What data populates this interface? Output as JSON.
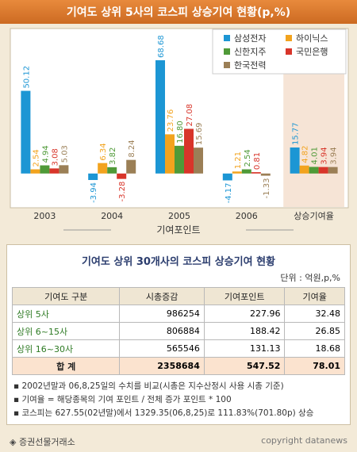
{
  "chart_data": {
    "type": "bar",
    "title": "기여도 상위 5사의 코스피 상승기여 현황(p,%)",
    "x_label": "기여포인트",
    "categories": [
      "2003",
      "2004",
      "2005",
      "2006",
      "상승기여율"
    ],
    "series": [
      {
        "name": "삼성전자",
        "color": "#1c96d4",
        "values": [
          50.12,
          -3.94,
          68.68,
          -4.17,
          15.77
        ]
      },
      {
        "name": "하이닉스",
        "color": "#f2a31e",
        "values": [
          2.54,
          6.34,
          23.76,
          1.21,
          4.82
        ]
      },
      {
        "name": "신한지주",
        "color": "#4f9a38",
        "values": [
          4.94,
          3.82,
          16.8,
          2.54,
          4.01
        ],
        "value_labels": [
          "4.94",
          "3.82",
          "16.80",
          "2.54",
          "4.01"
        ]
      },
      {
        "name": "국민은행",
        "color": "#d8352a",
        "values": [
          3.08,
          -3.28,
          27.08,
          0.81,
          3.94
        ]
      },
      {
        "name": "한국전력",
        "color": "#9b7f56",
        "values": [
          5.03,
          8.24,
          15.69,
          -1.33,
          3.94
        ]
      }
    ],
    "ylim": [
      -15,
      85
    ]
  },
  "table": {
    "title": "기여도 상위 30개사의 코스피 상승기여 현황",
    "unit": "단위 : 억원,p,%",
    "header": [
      "기여도 구분",
      "시총증감",
      "기여포인트",
      "기여율"
    ],
    "rows": [
      [
        "상위 5사",
        "986254",
        "227.96",
        "32.48"
      ],
      [
        "상위 6~15사",
        "806884",
        "188.42",
        "26.85"
      ],
      [
        "상위 16~30사",
        "565546",
        "131.13",
        "18.68"
      ]
    ],
    "total": [
      "합  계",
      "2358684",
      "547.52",
      "78.01"
    ]
  },
  "notes": [
    "2002년말과 06,8,25일의 수치를 비교(시총은 지수산정시 사용 시총 기준)",
    "기여율 = 해당종목의 기여 포인트 / 전체 증가 포인트 * 100",
    "코스피는 627.55(02년말)에서 1329.35(06,8,25)로 111.83%(701.80p)  상승"
  ],
  "footer": {
    "source": "◈ 증권선물거래소",
    "copyright": "copyright datanews"
  }
}
